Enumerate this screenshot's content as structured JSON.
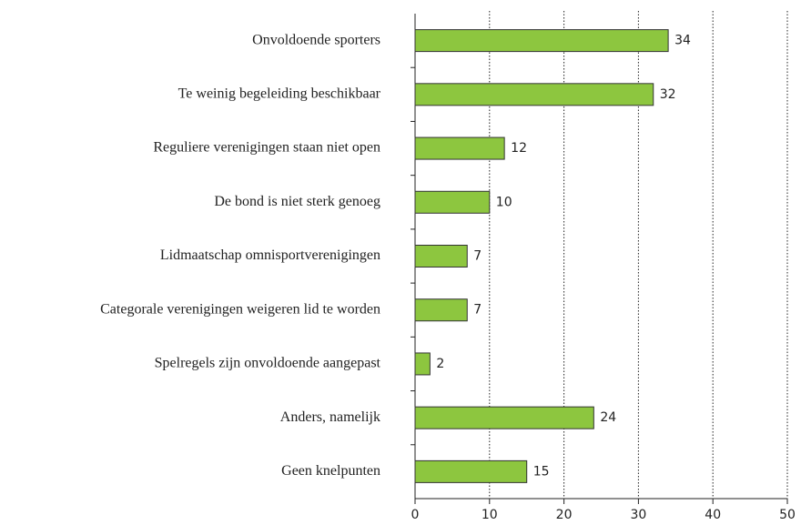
{
  "chart_data": {
    "type": "bar",
    "orientation": "horizontal",
    "categories": [
      "Onvoldoende sporters",
      "Te weinig begeleiding beschikbaar",
      "Reguliere verenigingen staan niet open",
      "De bond is niet sterk genoeg",
      "Lidmaatschap omnisportverenigingen",
      "Categorale verenigingen weigeren lid te worden",
      "Spelregels zijn onvoldoende aangepast",
      "Anders, namelijk",
      "Geen knelpunten"
    ],
    "values": [
      34,
      32,
      12,
      10,
      7,
      7,
      2,
      24,
      15
    ],
    "color": "#8dc63f",
    "xlim": [
      0,
      50
    ],
    "xticks": [
      0,
      10,
      20,
      30,
      40,
      50
    ],
    "grid": true
  }
}
